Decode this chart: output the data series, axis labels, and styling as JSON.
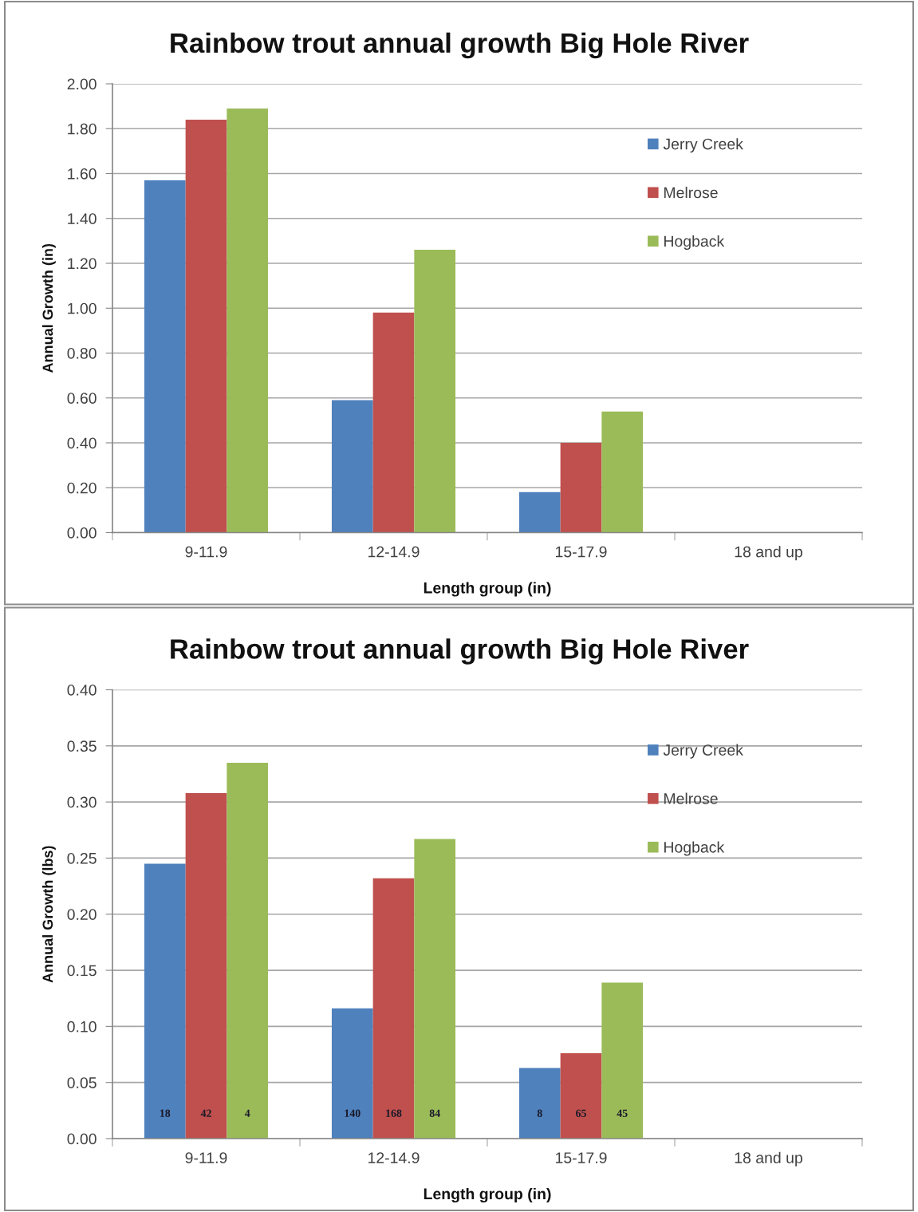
{
  "chart_data": [
    {
      "type": "bar",
      "title": "Rainbow trout annual growth Big Hole River",
      "xlabel": "Length group (in)",
      "ylabel": "Annual Growth (in)",
      "categories": [
        "9-11.9",
        "12-14.9",
        "15-17.9",
        "18 and up"
      ],
      "series": [
        {
          "name": "Jerry Creek",
          "color": "#4f81bd",
          "values": [
            1.57,
            0.59,
            0.18,
            null
          ]
        },
        {
          "name": "Melrose",
          "color": "#c0504d",
          "values": [
            1.84,
            0.98,
            0.4,
            null
          ]
        },
        {
          "name": "Hogback",
          "color": "#9bbb59",
          "values": [
            1.89,
            1.26,
            0.54,
            null
          ]
        }
      ],
      "ylim": [
        0,
        2
      ],
      "yticks": [
        {
          "value": 0,
          "label": "0.00"
        },
        {
          "value": 0.2,
          "label": "0.20"
        },
        {
          "value": 0.4,
          "label": "0.40"
        },
        {
          "value": 0.6,
          "label": "0.60"
        },
        {
          "value": 0.8,
          "label": "0.80"
        },
        {
          "value": 1.0,
          "label": "1.00"
        },
        {
          "value": 1.2,
          "label": "1.20"
        },
        {
          "value": 1.4,
          "label": "1.40"
        },
        {
          "value": 1.6,
          "label": "1.60"
        },
        {
          "value": 1.8,
          "label": "1.80"
        },
        {
          "value": 2.0,
          "label": "2.00"
        }
      ],
      "grid": "y",
      "legend": "top right"
    },
    {
      "type": "bar",
      "title": "Rainbow trout annual growth Big Hole River",
      "xlabel": "Length group (in)",
      "ylabel": "Annual Growth (lbs)",
      "categories": [
        "9-11.9",
        "12-14.9",
        "15-17.9",
        "18 and up"
      ],
      "series": [
        {
          "name": "Jerry Creek",
          "color": "#4f81bd",
          "values": [
            0.245,
            0.116,
            0.063,
            null
          ]
        },
        {
          "name": "Melrose",
          "color": "#c0504d",
          "values": [
            0.308,
            0.232,
            0.076,
            null
          ]
        },
        {
          "name": "Hogback",
          "color": "#9bbb59",
          "values": [
            0.335,
            0.267,
            0.139,
            null
          ]
        }
      ],
      "annotations": [
        "18",
        "42",
        "4",
        "140",
        "168",
        "84",
        "8",
        "65",
        "45"
      ],
      "ylim": [
        0,
        0.4
      ],
      "yticks": [
        {
          "value": 0,
          "label": "0.00"
        },
        {
          "value": 0.05,
          "label": "0.05"
        },
        {
          "value": 0.1,
          "label": "0.10"
        },
        {
          "value": 0.15,
          "label": "0.15"
        },
        {
          "value": 0.2,
          "label": "0.20"
        },
        {
          "value": 0.25,
          "label": "0.25"
        },
        {
          "value": 0.3,
          "label": "0.30"
        },
        {
          "value": 0.35,
          "label": "0.35"
        },
        {
          "value": 0.4,
          "label": "0.40"
        }
      ],
      "grid": "y",
      "legend": "top right"
    }
  ]
}
